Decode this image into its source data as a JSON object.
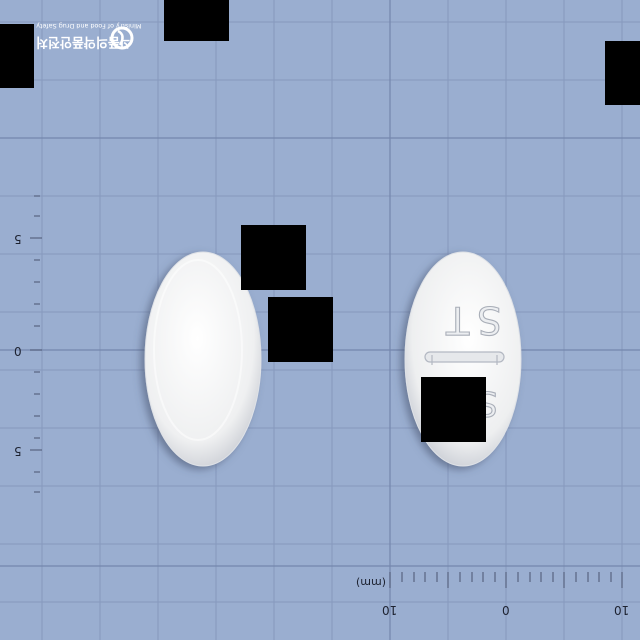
{
  "logo": {
    "agency_korean": "식품의약품안전처",
    "agency_english": "Ministry of Food and Drug Safety"
  },
  "scale": {
    "unit": "(mm)",
    "bottom_ticks": [
      "10",
      "0",
      "10"
    ],
    "left_ticks": [
      "5",
      "0",
      "5"
    ]
  },
  "pill_back": {
    "imprint_top": "ST",
    "imprint_bottom": "S"
  },
  "colors": {
    "background": "#9aaed0",
    "grid": "#8597bb",
    "pill": "#f3f4f4",
    "redaction": "#000000"
  }
}
